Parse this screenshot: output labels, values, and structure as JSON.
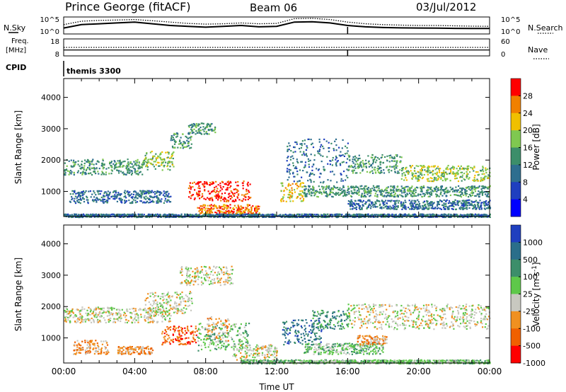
{
  "header": {
    "station": "Prince George (fitACF)",
    "beam": "Beam 06",
    "date": "03/Jul/2012"
  },
  "side_labels": {
    "nsky": "N.Sky",
    "nsearch": "N.Search",
    "freq_line1": "Freq.",
    "freq_line2": "[MHz]",
    "nave": "Nave",
    "cpid": "CPID",
    "cpid_value": "themis 3300"
  },
  "chart_data": [
    {
      "type": "line",
      "panel": "noise",
      "y_ticks_left": [
        "10^5",
        "10^0"
      ],
      "y_ticks_right": [
        "10^5",
        "10^0"
      ],
      "series": [
        {
          "name": "N.Sky",
          "style": "solid",
          "x_hours": [
            0.0,
            1,
            2,
            3,
            4,
            5,
            6,
            7,
            8,
            9,
            10,
            11,
            12,
            13,
            14,
            15,
            16,
            17,
            18,
            19,
            20,
            21,
            22,
            23,
            24
          ],
          "y_frac": [
            0.35,
            0.55,
            0.6,
            0.65,
            0.7,
            0.6,
            0.5,
            0.45,
            0.4,
            0.45,
            0.5,
            0.42,
            0.45,
            0.7,
            0.72,
            0.65,
            0.5,
            0.42,
            0.38,
            0.36,
            0.35,
            0.34,
            0.33,
            0.32,
            0.32
          ]
        },
        {
          "name": "N.Search",
          "style": "dotted",
          "x_hours": [
            0.0,
            1,
            2,
            3,
            4,
            5,
            6,
            7,
            8,
            9,
            10,
            11,
            12,
            13,
            14,
            15,
            16,
            17,
            18,
            19,
            20,
            21,
            22,
            23,
            24
          ],
          "y_frac": [
            0.55,
            0.75,
            0.8,
            0.82,
            0.85,
            0.78,
            0.7,
            0.62,
            0.58,
            0.6,
            0.65,
            0.6,
            0.62,
            0.9,
            0.92,
            0.85,
            0.7,
            0.6,
            0.55,
            0.52,
            0.5,
            0.5,
            0.48,
            0.46,
            0.45
          ]
        }
      ]
    },
    {
      "type": "line",
      "panel": "frequency",
      "y_ticks_left": [
        "18",
        "8"
      ],
      "y_ticks_right": [
        "60",
        "0"
      ],
      "series": [
        {
          "name": "Freq",
          "style": "solid",
          "x_hours": [
            0,
            24
          ],
          "y_frac": [
            0.35,
            0.35
          ]
        },
        {
          "name": "Nave",
          "style": "dotted",
          "x_hours": [
            0,
            24
          ],
          "y_frac": [
            0.5,
            0.5
          ]
        }
      ]
    },
    {
      "type": "heatmap",
      "panel": "power",
      "ylabel": "Slant Range [km]",
      "y_ticks": [
        1000,
        2000,
        3000,
        4000
      ],
      "ylim": [
        200,
        4600
      ],
      "x_ticks": [
        "00:00",
        "04:00",
        "08:00",
        "12:00",
        "16:00",
        "20:00",
        "00:00"
      ],
      "xlim_hours": [
        0,
        24
      ],
      "colorbar": {
        "label": "Power [dB]",
        "ticks": [
          "4",
          "8",
          "12",
          "16",
          "20",
          "24",
          "28"
        ],
        "colors": [
          "#0000ff",
          "#1f3fbf",
          "#2e6e8f",
          "#3c8e6a",
          "#7fc850",
          "#f0c000",
          "#f08000",
          "#ff0000"
        ]
      },
      "features": [
        {
          "x0": 0.0,
          "x1": 4.5,
          "r0": 1550,
          "r1": 2050,
          "level": 3
        },
        {
          "x0": 4.5,
          "x1": 6.2,
          "r0": 1700,
          "r1": 2300,
          "level": 4
        },
        {
          "x0": 6.0,
          "x1": 7.2,
          "r0": 2400,
          "r1": 2900,
          "level": 3
        },
        {
          "x0": 7.0,
          "x1": 8.5,
          "r0": 2850,
          "r1": 3200,
          "level": 3
        },
        {
          "x0": 0.3,
          "x1": 6.0,
          "r0": 650,
          "r1": 1050,
          "level": 2
        },
        {
          "x0": 7.0,
          "x1": 10.5,
          "r0": 700,
          "r1": 1350,
          "level": 7
        },
        {
          "x0": 7.5,
          "x1": 11.0,
          "r0": 300,
          "r1": 600,
          "level": 6
        },
        {
          "x0": 0.0,
          "x1": 24.0,
          "r0": 200,
          "r1": 300,
          "level": 2
        },
        {
          "x0": 12.2,
          "x1": 13.5,
          "r0": 700,
          "r1": 1300,
          "level": 5
        },
        {
          "x0": 12.5,
          "x1": 16.0,
          "r0": 1300,
          "r1": 2700,
          "level": 2
        },
        {
          "x0": 16.0,
          "x1": 19.0,
          "r0": 1600,
          "r1": 2200,
          "level": 3
        },
        {
          "x0": 19.0,
          "x1": 24.0,
          "r0": 1350,
          "r1": 1850,
          "level": 4
        },
        {
          "x0": 13.5,
          "x1": 24.0,
          "r0": 850,
          "r1": 1200,
          "level": 3
        },
        {
          "x0": 16.0,
          "x1": 24.0,
          "r0": 450,
          "r1": 750,
          "level": 2
        }
      ]
    },
    {
      "type": "heatmap",
      "panel": "velocity",
      "ylabel": "Slant Range [km]",
      "y_ticks": [
        1000,
        2000,
        3000,
        4000
      ],
      "ylim": [
        200,
        4600
      ],
      "x_ticks": [
        "00:00",
        "04:00",
        "08:00",
        "12:00",
        "16:00",
        "20:00",
        "00:00"
      ],
      "xlim_hours": [
        0,
        24
      ],
      "xlabel": "Time UT",
      "colorbar": {
        "label": "Velocity [m s^-1]",
        "ticks": [
          "1000",
          "500",
          "100",
          "25",
          "-25",
          "-100",
          "-500",
          "-1000"
        ],
        "colors": [
          "#1f3fbf",
          "#2a6e8a",
          "#3c8e6a",
          "#5ec84a",
          "#c8c8c0",
          "#f09020",
          "#f06000",
          "#ff0000"
        ]
      },
      "features": [
        {
          "x0": 0.0,
          "x1": 6.0,
          "r0": 1500,
          "r1": 2000,
          "level": 4
        },
        {
          "x0": 4.5,
          "x1": 7.2,
          "r0": 1800,
          "r1": 2500,
          "level": 4
        },
        {
          "x0": 6.5,
          "x1": 9.5,
          "r0": 2700,
          "r1": 3300,
          "level": 4
        },
        {
          "x0": 0.5,
          "x1": 2.5,
          "r0": 500,
          "r1": 950,
          "level": 5
        },
        {
          "x0": 3.0,
          "x1": 5.0,
          "r0": 500,
          "r1": 750,
          "level": 5
        },
        {
          "x0": 5.5,
          "x1": 7.5,
          "r0": 800,
          "r1": 1400,
          "level": 6
        },
        {
          "x0": 8.0,
          "x1": 9.3,
          "r0": 900,
          "r1": 1700,
          "level": 5
        },
        {
          "x0": 7.5,
          "x1": 10.5,
          "r0": 600,
          "r1": 1500,
          "level": 3
        },
        {
          "x0": 9.5,
          "x1": 12.0,
          "r0": 300,
          "r1": 800,
          "level": 4
        },
        {
          "x0": 12.3,
          "x1": 14.5,
          "r0": 800,
          "r1": 1600,
          "level": 1
        },
        {
          "x0": 14.0,
          "x1": 16.0,
          "r0": 1300,
          "r1": 1900,
          "level": 2
        },
        {
          "x0": 13.5,
          "x1": 18.0,
          "r0": 500,
          "r1": 850,
          "level": 3
        },
        {
          "x0": 16.5,
          "x1": 18.2,
          "r0": 800,
          "r1": 1100,
          "level": 5
        },
        {
          "x0": 16.0,
          "x1": 24.0,
          "r0": 1300,
          "r1": 2100,
          "level": 4
        },
        {
          "x0": 10.0,
          "x1": 24.0,
          "r0": 200,
          "r1": 320,
          "level": 3
        }
      ]
    }
  ]
}
